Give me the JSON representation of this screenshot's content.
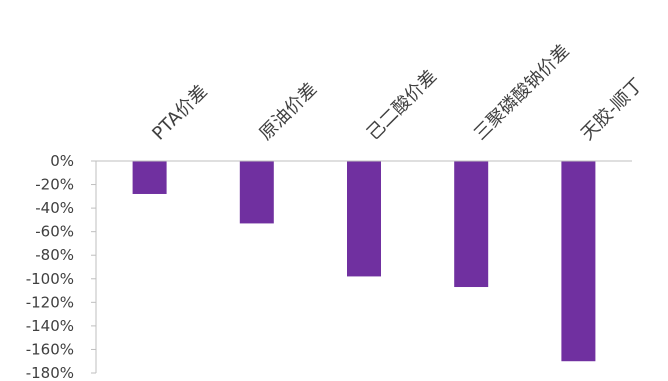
{
  "chart_data": {
    "type": "bar",
    "categories": [
      "PTA价差",
      "原油价差",
      "己二酸价差",
      "三聚磷酸钠价差",
      "天胶-顺丁"
    ],
    "values": [
      -28,
      -53,
      -98,
      -107,
      -170
    ],
    "ylim": [
      -180,
      0
    ],
    "yticks": [
      0,
      -20,
      -40,
      -60,
      -80,
      -100,
      -120,
      -140,
      -160,
      -180
    ],
    "ytick_labels": [
      "0%",
      "-20%",
      "-40%",
      "-60%",
      "-80%",
      "-100%",
      "-120%",
      "-140%",
      "-160%",
      "-180%"
    ],
    "bar_color": "#7030a0",
    "axis_color": "#bfbfbf",
    "grid": false,
    "legend": "none"
  }
}
